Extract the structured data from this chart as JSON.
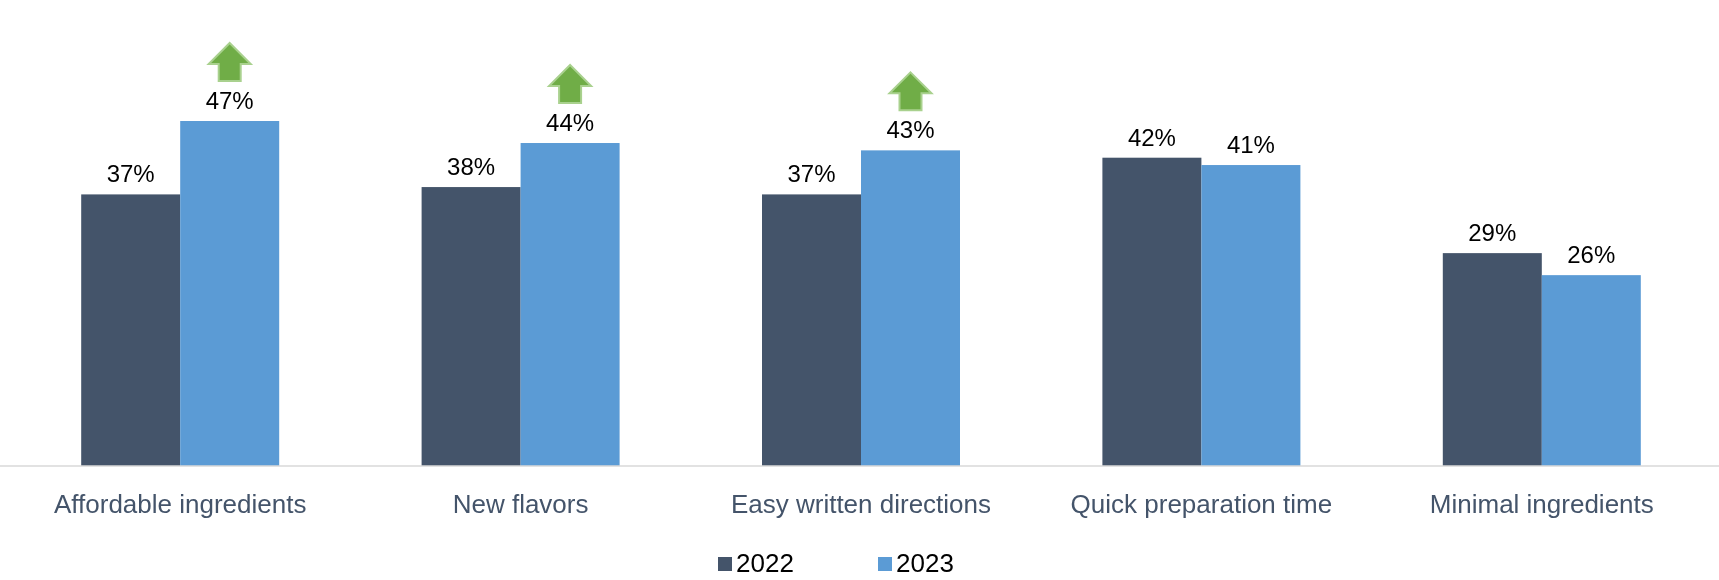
{
  "chart_data": {
    "type": "bar",
    "categories": [
      "Affordable ingredients",
      "New flavors",
      "Easy written directions",
      "Quick preparation time",
      "Minimal ingredients"
    ],
    "series": [
      {
        "name": "2022",
        "color": "#44546a",
        "values": [
          37,
          38,
          37,
          42,
          29
        ],
        "value_labels": [
          "37%",
          "38%",
          "37%",
          "42%",
          "29%"
        ]
      },
      {
        "name": "2023",
        "color": "#5b9bd5",
        "values": [
          47,
          44,
          43,
          41,
          26
        ],
        "value_labels": [
          "47%",
          "44%",
          "43%",
          "41%",
          "26%"
        ]
      }
    ],
    "legend": "bottom"
  }
}
